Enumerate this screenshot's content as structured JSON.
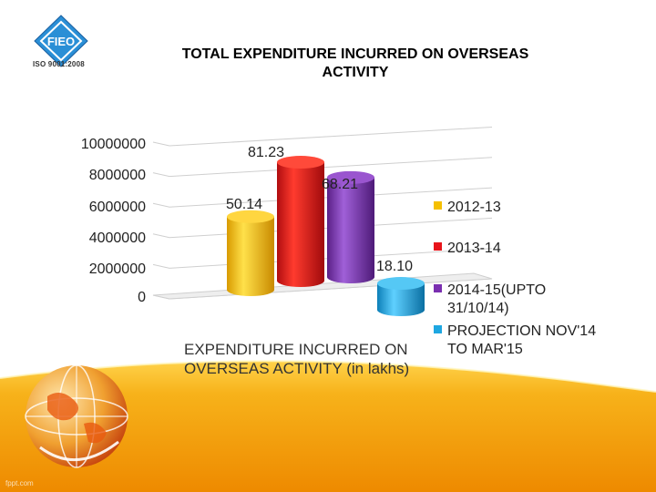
{
  "header": {
    "logo_text": "FIEO",
    "iso_text": "ISO 9001:2008",
    "title_line1": "TOTAL EXPENDITURE INCURRED ON OVERSEAS",
    "title_line2": "ACTIVITY"
  },
  "footer": {
    "watermark": "fppt.com"
  },
  "colors": {
    "series_2012_13": "#f5c000",
    "series_2013_14": "#e8141b",
    "series_2014_15": "#7a2fb0",
    "series_projection": "#1ea7e1",
    "band_orange": "#f29a00"
  },
  "chart_data": {
    "type": "bar",
    "variant": "3d-cylinder",
    "categories": [
      "2012-13",
      "2013-14",
      "2014-15(UPTO 31/10/14)",
      "PROJECTION NOV'14 TO MAR'15"
    ],
    "values": [
      50.14,
      81.23,
      68.21,
      18.1
    ],
    "data_labels": [
      "50.14",
      "81.23",
      "68.21",
      "18.10"
    ],
    "y_ticks": [
      "0",
      "2000000",
      "4000000",
      "6000000",
      "8000000",
      "10000000"
    ],
    "ylim": [
      0,
      10000000
    ],
    "caption_line1": "EXPENDITURE INCURRED ON",
    "caption_line2": "OVERSEAS ACTIVITY (in lakhs)",
    "legend": {
      "placement": "right",
      "entries": [
        "2012-13",
        "2013-14",
        "2014-15(UPTO",
        "31/10/14)",
        "PROJECTION NOV'14",
        "TO MAR'15"
      ]
    },
    "grid": true
  }
}
